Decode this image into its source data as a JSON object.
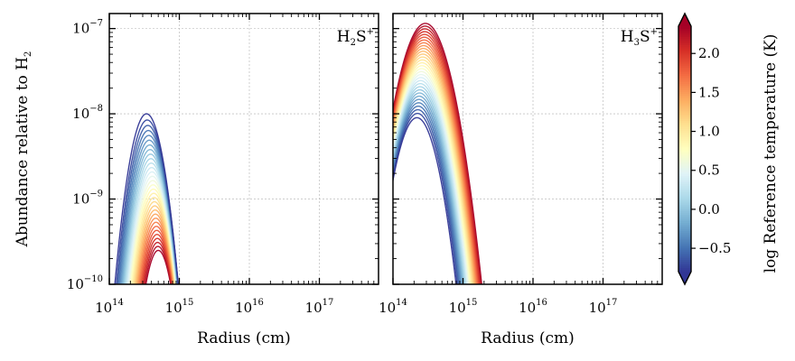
{
  "chart_data": [
    {
      "type": "line",
      "panel": "left",
      "species_label": {
        "base": "H",
        "sub": "2",
        "mid": "S",
        "sup": "+"
      },
      "xlabel": "Radius (cm)",
      "ylabel": {
        "text": "Abundance relative to H",
        "sub": "2"
      },
      "xscale": "log",
      "yscale": "log",
      "xlim": [
        100000000000000.0,
        7e+17
      ],
      "ylim": [
        1e-10,
        1.5e-07
      ],
      "x_ticks": [
        {
          "base": "10",
          "exp": "14"
        },
        {
          "base": "10",
          "exp": "15"
        },
        {
          "base": "10",
          "exp": "16"
        },
        {
          "base": "10",
          "exp": "17"
        }
      ],
      "y_ticks": [
        {
          "base": "10",
          "exp": "−10"
        },
        {
          "base": "10",
          "exp": "−9"
        },
        {
          "base": "10",
          "exp": "−8"
        },
        {
          "base": "10",
          "exp": "−7"
        }
      ],
      "grid": true,
      "series_count": 32,
      "series_model": "log-parabola peak profiles, one per reference temperature",
      "coldest_peak": {
        "radius_cm": 340000000000000.0,
        "abundance": 1e-08
      },
      "hottest_peak": {
        "radius_cm": 500000000000000.0,
        "abundance": 2.5e-10
      }
    },
    {
      "type": "line",
      "panel": "right",
      "species_label": {
        "base": "H",
        "sub": "3",
        "mid": "S",
        "sup": "+"
      },
      "xlabel": "Radius (cm)",
      "xscale": "log",
      "yscale": "log",
      "xlim": [
        100000000000000.0,
        7e+17
      ],
      "ylim": [
        1e-10,
        1.5e-07
      ],
      "x_ticks": [
        {
          "base": "10",
          "exp": "14"
        },
        {
          "base": "10",
          "exp": "15"
        },
        {
          "base": "10",
          "exp": "16"
        },
        {
          "base": "10",
          "exp": "17"
        }
      ],
      "grid": true,
      "series_count": 32,
      "series_model": "log-parabola peak profiles, one per reference temperature",
      "coldest_peak": {
        "radius_cm": 220000000000000.0,
        "abundance": 9e-09
      },
      "hottest_peak": {
        "radius_cm": 290000000000000.0,
        "abundance": 1.15e-07
      }
    }
  ],
  "colorbar": {
    "label": "log Reference temperature (K)",
    "range": [
      -0.8,
      2.35
    ],
    "ticks": [
      "−0.5",
      "0.0",
      "0.5",
      "1.0",
      "1.5",
      "2.0"
    ],
    "tick_values": [
      -0.5,
      0.0,
      0.5,
      1.0,
      1.5,
      2.0
    ],
    "extend": "both",
    "colormap": "RdYlBu_r",
    "colormap_stops": [
      "#313695",
      "#4575b4",
      "#74add1",
      "#abd9e9",
      "#e0f3f8",
      "#ffffbf",
      "#fee090",
      "#fdae61",
      "#f46d43",
      "#d73027",
      "#a50026"
    ]
  }
}
